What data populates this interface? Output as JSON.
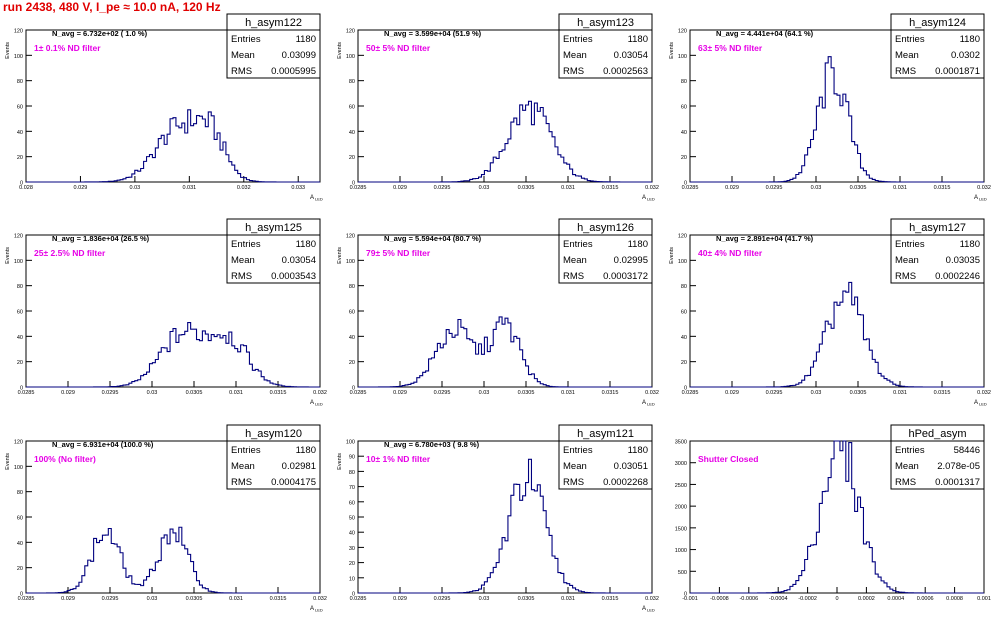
{
  "page_title": "run 2438,   480 V, I_pe ≈ 10.0 nA, 120 Hz",
  "colors": {
    "histogram": "#00007f",
    "label_magenta": "#e600e6",
    "title_red": "#e00000",
    "frame": "#000000"
  },
  "chart_data": [
    {
      "type": "bar",
      "title": "h_asym122",
      "navg": "N_avg = 6.732e+02 ( 1.0 %)",
      "label": "1± 0.1% ND filter",
      "stats": {
        "entries": "1180",
        "mean": "0.03099",
        "rms": "0.0005995"
      },
      "ylabel": "Events",
      "xlabel": "A_{LED}",
      "xlim": [
        0.028,
        0.0334
      ],
      "ylim": [
        0,
        120
      ],
      "xticks": [
        "0.028",
        "0.029",
        "0.03",
        "0.031",
        "0.032",
        "0.033"
      ],
      "yticks": [
        "0",
        "20",
        "40",
        "60",
        "80",
        "100",
        "120"
      ],
      "shape": {
        "peaks": [
          [
            0.0308,
            0.00042,
            42
          ],
          [
            0.0314,
            0.00028,
            30
          ]
        ]
      }
    },
    {
      "type": "bar",
      "title": "h_asym123",
      "navg": "N_avg = 3.599e+04 (51.9 %)",
      "label": "50± 5% ND filter",
      "stats": {
        "entries": "1180",
        "mean": "0.03054",
        "rms": "0.0002563"
      },
      "ylabel": "Events",
      "xlabel": "A_{LED}",
      "xlim": [
        0.0285,
        0.032
      ],
      "ylim": [
        0,
        120
      ],
      "xticks": [
        "0.0285",
        "0.029",
        "0.0295",
        "0.03",
        "0.0305",
        "0.031",
        "0.0315",
        "0.032"
      ],
      "yticks": [
        "0",
        "20",
        "40",
        "60",
        "80",
        "100",
        "120"
      ],
      "shape": {
        "peaks": [
          [
            0.03054,
            0.00026,
            58
          ]
        ]
      }
    },
    {
      "type": "bar",
      "title": "h_asym124",
      "navg": "N_avg = 4.441e+04 (64.1 %)",
      "label": "63± 5% ND filter",
      "stats": {
        "entries": "1180",
        "mean": "0.0302",
        "rms": "0.0001871"
      },
      "ylabel": "Events",
      "xlabel": "A_{LED}",
      "xlim": [
        0.0285,
        0.032
      ],
      "ylim": [
        0,
        120
      ],
      "xticks": [
        "0.0285",
        "0.029",
        "0.0295",
        "0.03",
        "0.0305",
        "0.031",
        "0.0315",
        "0.032"
      ],
      "yticks": [
        "0",
        "20",
        "40",
        "60",
        "80",
        "100",
        "120"
      ],
      "shape": {
        "peaks": [
          [
            0.0302,
            0.00018,
            85
          ]
        ]
      }
    },
    {
      "type": "bar",
      "title": "h_asym125",
      "navg": "N_avg = 1.836e+04 (26.5 %)",
      "label": "25± 2.5% ND filter",
      "stats": {
        "entries": "1180",
        "mean": "0.03054",
        "rms": "0.0003543"
      },
      "ylabel": "Events",
      "xlabel": "A_{LED}",
      "xlim": [
        0.0285,
        0.032
      ],
      "ylim": [
        0,
        120
      ],
      "xticks": [
        "0.0285",
        "0.029",
        "0.0295",
        "0.03",
        "0.0305",
        "0.031",
        "0.0315",
        "0.032"
      ],
      "yticks": [
        "0",
        "20",
        "40",
        "60",
        "80",
        "100",
        "120"
      ],
      "shape": {
        "peaks": [
          [
            0.03035,
            0.00026,
            40
          ],
          [
            0.0309,
            0.00024,
            38
          ]
        ]
      }
    },
    {
      "type": "bar",
      "title": "h_asym126",
      "navg": "N_avg = 5.594e+04 (80.7 %)",
      "label": "79± 5% ND filter",
      "stats": {
        "entries": "1180",
        "mean": "0.02995",
        "rms": "0.0003172"
      },
      "ylabel": "Events",
      "xlabel": "A_{LED}",
      "xlim": [
        0.0285,
        0.032
      ],
      "ylim": [
        0,
        120
      ],
      "xticks": [
        "0.0285",
        "0.029",
        "0.0295",
        "0.03",
        "0.0305",
        "0.031",
        "0.0315",
        "0.032"
      ],
      "yticks": [
        "0",
        "20",
        "40",
        "60",
        "80",
        "100",
        "120"
      ],
      "shape": {
        "peaks": [
          [
            0.02965,
            0.00022,
            45
          ],
          [
            0.03025,
            0.00018,
            48
          ]
        ]
      }
    },
    {
      "type": "bar",
      "title": "h_asym127",
      "navg": "N_avg = 2.891e+04 (41.7 %)",
      "label": "40± 4% ND filter",
      "stats": {
        "entries": "1180",
        "mean": "0.03035",
        "rms": "0.0002246"
      },
      "ylabel": "Events",
      "xlabel": "A_{LED}",
      "xlim": [
        0.0285,
        0.032
      ],
      "ylim": [
        0,
        120
      ],
      "xticks": [
        "0.0285",
        "0.029",
        "0.0295",
        "0.03",
        "0.0305",
        "0.031",
        "0.0315",
        "0.032"
      ],
      "yticks": [
        "0",
        "20",
        "40",
        "60",
        "80",
        "100",
        "120"
      ],
      "shape": {
        "peaks": [
          [
            0.03035,
            0.00022,
            72
          ]
        ]
      }
    },
    {
      "type": "bar",
      "title": "h_asym120",
      "navg": "N_avg = 6.931e+04 (100.0 %)",
      "label": "100% (No filter)",
      "stats": {
        "entries": "1180",
        "mean": "0.02981",
        "rms": "0.0004175"
      },
      "ylabel": "Events",
      "xlabel": "A_{LED}",
      "xlim": [
        0.0285,
        0.032
      ],
      "ylim": [
        0,
        120
      ],
      "xticks": [
        "0.0285",
        "0.029",
        "0.0295",
        "0.03",
        "0.0305",
        "0.031",
        "0.0315",
        "0.032"
      ],
      "yticks": [
        "0",
        "20",
        "40",
        "60",
        "80",
        "100",
        "120"
      ],
      "shape": {
        "peaks": [
          [
            0.02945,
            0.00017,
            48
          ],
          [
            0.03025,
            0.00017,
            50
          ]
        ]
      }
    },
    {
      "type": "bar",
      "title": "h_asym121",
      "navg": "N_avg = 6.780e+03 ( 9.8 %)",
      "label": "10± 1% ND filter",
      "stats": {
        "entries": "1180",
        "mean": "0.03051",
        "rms": "0.0002268"
      },
      "ylabel": "Events",
      "xlabel": "A_{LED}",
      "xlim": [
        0.0285,
        0.032
      ],
      "ylim": [
        0,
        100
      ],
      "xticks": [
        "0.0285",
        "0.029",
        "0.0295",
        "0.03",
        "0.0305",
        "0.031",
        "0.0315",
        "0.032"
      ],
      "yticks": [
        "0",
        "10",
        "20",
        "30",
        "40",
        "50",
        "60",
        "70",
        "80",
        "90",
        "100"
      ],
      "shape": {
        "peaks": [
          [
            0.03051,
            0.00022,
            75
          ]
        ]
      }
    },
    {
      "type": "bar",
      "title": "hPed_asym",
      "navg": "",
      "label": "Shutter Closed",
      "stats": {
        "entries": "58446",
        "mean": "2.078e-05",
        "rms": "0.0001317"
      },
      "ylabel": "",
      "xlabel": "",
      "xlim": [
        -0.001,
        0.001
      ],
      "ylim": [
        0,
        3500
      ],
      "xticks": [
        "-0.001",
        "-0.0008",
        "-0.0006",
        "-0.0004",
        "-0.0002",
        "0",
        "0.0002",
        "0.0004",
        "0.0006",
        "0.0008",
        "0.001"
      ],
      "yticks": [
        "0",
        "500",
        "1000",
        "1500",
        "2000",
        "2500",
        "3000",
        "3500"
      ],
      "shape": {
        "peaks": [
          [
            2e-05,
            0.00013,
            3350
          ]
        ]
      }
    }
  ]
}
